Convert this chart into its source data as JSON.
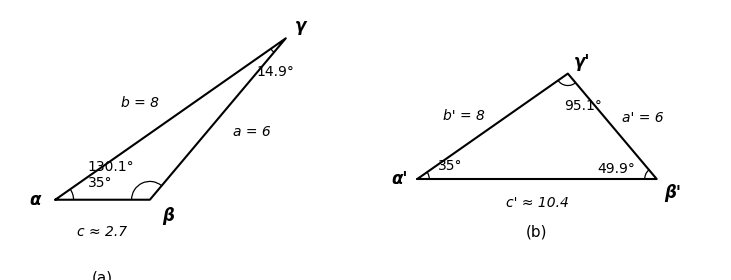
{
  "figsize": [
    7.31,
    2.8
  ],
  "dpi": 100,
  "background": "#ffffff",
  "triangle_a": {
    "alpha_deg": 35.0,
    "beta_deg": 130.1,
    "gamma_deg": 14.9,
    "side_a": 6,
    "side_b": 8,
    "label_alpha": "α",
    "label_beta": "β",
    "label_gamma": "γ",
    "angle_label_alpha": "35°",
    "angle_label_beta": "130.1°",
    "angle_label_gamma": "14.9°",
    "side_label_a": "a = 6",
    "side_label_b": "b = 8",
    "side_label_c": "c ≈ 2.7",
    "caption": "(a)"
  },
  "triangle_b": {
    "alpha_deg": 35.0,
    "beta_deg": 49.9,
    "gamma_deg": 95.1,
    "side_a": 6,
    "side_b": 8,
    "label_alpha": "α'",
    "label_beta": "β'",
    "label_gamma": "γ'",
    "angle_label_alpha": "35°",
    "angle_label_beta": "49.9°",
    "angle_label_gamma": "95.1°",
    "side_label_a": "a' = 6",
    "side_label_b": "b' = 8",
    "side_label_c": "c' ≈ 10.4",
    "caption": "(b)"
  },
  "linewidth": 1.5,
  "fontsize": 10,
  "label_fontsize": 12
}
